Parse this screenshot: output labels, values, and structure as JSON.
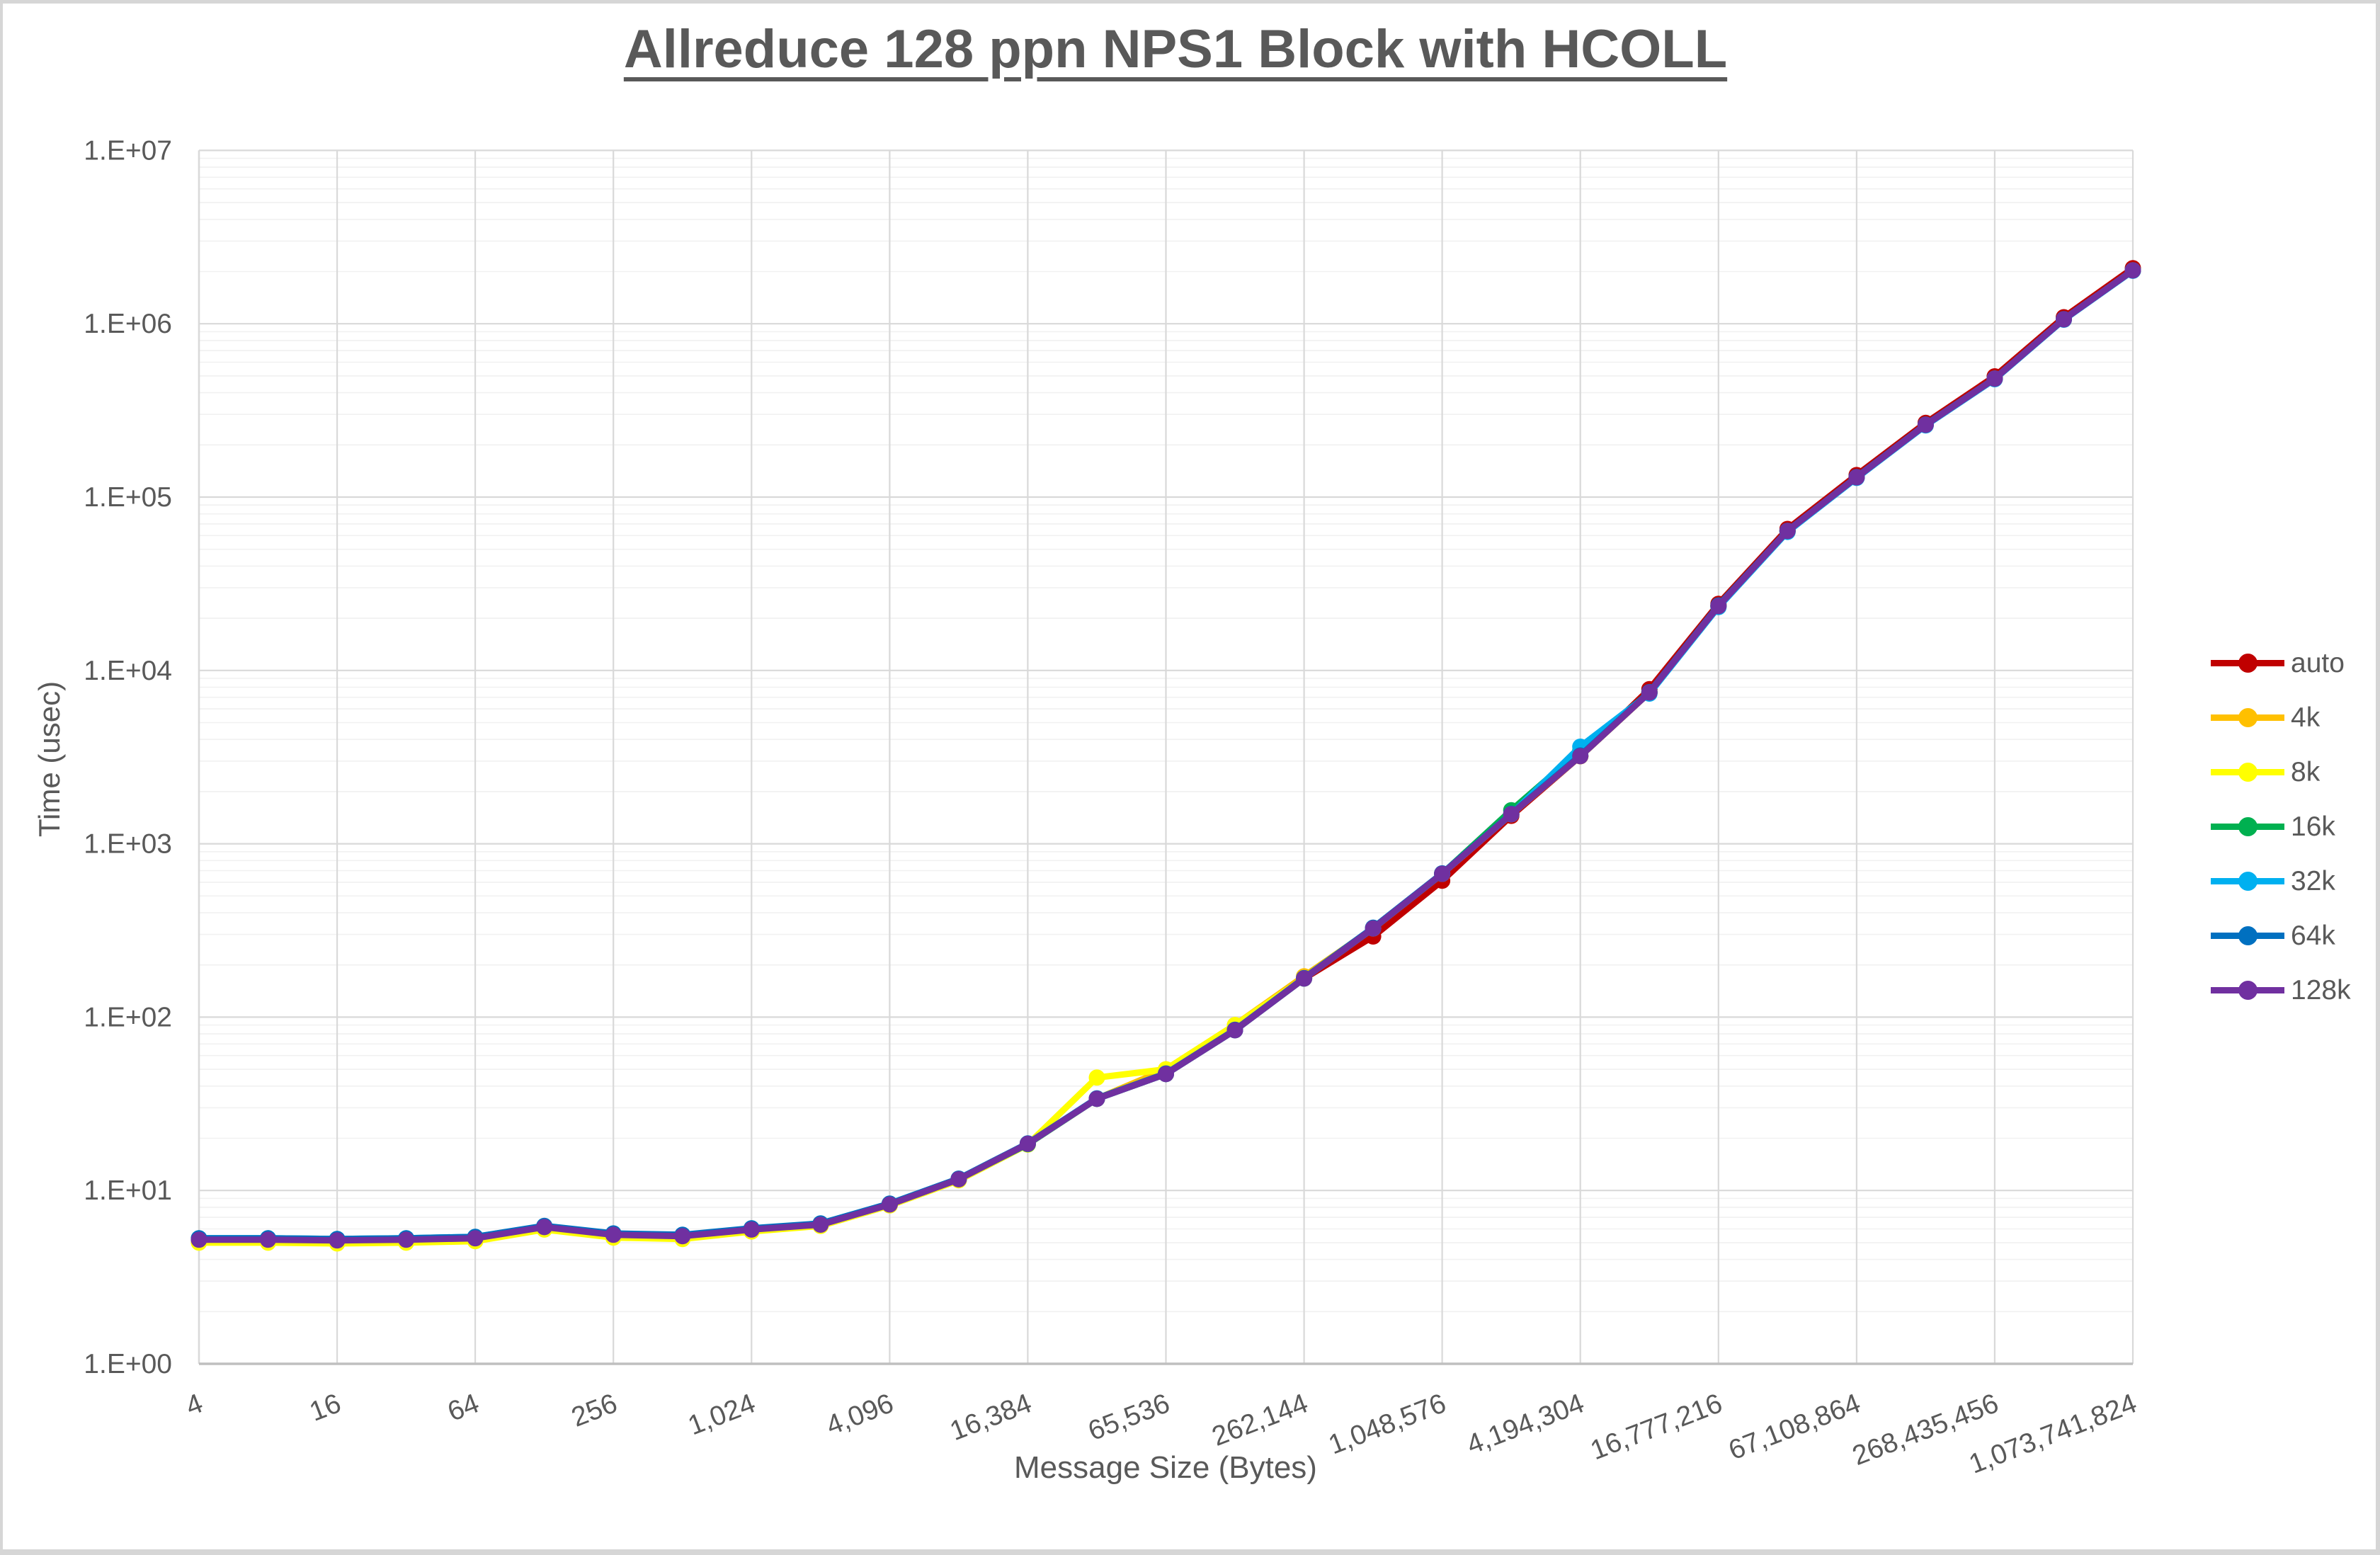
{
  "title": "Allreduce 128 ppn NPS1 Block with HCOLL",
  "y_axis": {
    "title": "Time (usec)",
    "tick_labels": [
      "1.E+00",
      "1.E+01",
      "1.E+02",
      "1.E+03",
      "1.E+04",
      "1.E+05",
      "1.E+06",
      "1.E+07"
    ]
  },
  "x_axis": {
    "title": "Message Size (Bytes)",
    "tick_labels": [
      "4",
      "16",
      "64",
      "256",
      "1,024",
      "4,096",
      "16,384",
      "65,536",
      "262,144",
      "1,048,576",
      "4,194,304",
      "16,777,216",
      "67,108,864",
      "268,435,456",
      "1,073,741,824"
    ]
  },
  "legend": [
    {
      "label": "auto",
      "color": "#C00000"
    },
    {
      "label": "4k",
      "color": "#FFC000"
    },
    {
      "label": "8k",
      "color": "#FFFF00"
    },
    {
      "label": "16k",
      "color": "#00B050"
    },
    {
      "label": "32k",
      "color": "#00B0F0"
    },
    {
      "label": "64k",
      "color": "#0070C0"
    },
    {
      "label": "128k",
      "color": "#7030A0"
    }
  ],
  "colors": {
    "text": "#595959",
    "major_grid": "#D9D9D9",
    "minor_grid": "#F1F1F1",
    "axis_line": "#BFBFBF"
  },
  "chart_data": {
    "type": "line",
    "title": "Allreduce 128 ppn NPS1 Block with HCOLL",
    "xlabel": "Message Size (Bytes)",
    "ylabel": "Time (usec)",
    "x_scale": "log2-categorical",
    "y_scale": "log10",
    "ylim": [
      1,
      10000000
    ],
    "grid": "horizontal major+log minors, vertical majors every other category",
    "legend_position": "right",
    "categories": [
      4,
      8,
      16,
      32,
      64,
      128,
      256,
      512,
      1024,
      2048,
      4096,
      8192,
      16384,
      32768,
      65536,
      131072,
      262144,
      524288,
      1048576,
      2097152,
      4194304,
      8388608,
      16777216,
      33554432,
      67108864,
      134217728,
      268435456,
      536870912,
      1073741824
    ],
    "series": [
      {
        "name": "auto",
        "color": "#C00000",
        "values": [
          5.2,
          5.2,
          5.15,
          5.2,
          5.3,
          6.15,
          5.55,
          5.45,
          5.95,
          6.35,
          8.3,
          11.6,
          18.6,
          33.8,
          47,
          84,
          167,
          292,
          612,
          1450,
          3200,
          7800,
          24200,
          65500,
          134000,
          268000,
          497000,
          1090000,
          2090000
        ]
      },
      {
        "name": "4k",
        "color": "#FFC000",
        "values": [
          5.05,
          5.05,
          5.0,
          5.05,
          5.15,
          6.0,
          5.4,
          5.3,
          5.85,
          6.3,
          8.25,
          11.5,
          18.5,
          33.8,
          50,
          90,
          172,
          325,
          671,
          1480,
          3200,
          7460,
          23500,
          63700,
          130000,
          261000,
          482000,
          1060000,
          2030000
        ]
      },
      {
        "name": "8k",
        "color": "#FFFF00",
        "values": [
          5.0,
          5.0,
          4.95,
          5.0,
          5.1,
          5.95,
          5.35,
          5.25,
          5.8,
          6.25,
          8.2,
          11.45,
          18.4,
          44.8,
          50,
          90,
          167,
          325,
          671,
          1480,
          3200,
          7460,
          23500,
          63700,
          130000,
          261000,
          482000,
          1060000,
          2030000
        ]
      },
      {
        "name": "16k",
        "color": "#00B050",
        "values": [
          5.25,
          5.25,
          5.2,
          5.25,
          5.35,
          6.2,
          5.6,
          5.5,
          6.0,
          6.4,
          8.35,
          11.65,
          18.5,
          33.8,
          47,
          84,
          167,
          325,
          671,
          1560,
          3450,
          7460,
          23500,
          63700,
          130000,
          261000,
          482000,
          1060000,
          2030000
        ]
      },
      {
        "name": "32k",
        "color": "#00B0F0",
        "values": [
          5.3,
          5.3,
          5.25,
          5.3,
          5.4,
          6.2,
          5.6,
          5.5,
          6.0,
          6.4,
          8.35,
          11.65,
          18.6,
          33.8,
          47,
          84,
          167,
          325,
          671,
          1480,
          3630,
          7350,
          23200,
          63000,
          129000,
          259000,
          479000,
          1055000,
          2020000
        ]
      },
      {
        "name": "64k",
        "color": "#0070C0",
        "values": [
          5.3,
          5.3,
          5.25,
          5.3,
          5.4,
          6.25,
          5.65,
          5.55,
          6.05,
          6.45,
          8.4,
          11.7,
          18.7,
          34,
          47.3,
          84.5,
          168,
          328,
          675,
          1490,
          3230,
          7500,
          23700,
          63900,
          130500,
          262000,
          483000,
          1062000,
          2032000
        ]
      },
      {
        "name": "128k",
        "color": "#7030A0",
        "values": [
          5.2,
          5.2,
          5.15,
          5.2,
          5.3,
          6.15,
          5.55,
          5.45,
          5.95,
          6.35,
          8.3,
          11.6,
          18.6,
          33.8,
          47,
          84,
          167,
          325,
          671,
          1480,
          3200,
          7460,
          23500,
          63700,
          130000,
          261000,
          482000,
          1060000,
          2030000
        ]
      }
    ]
  }
}
